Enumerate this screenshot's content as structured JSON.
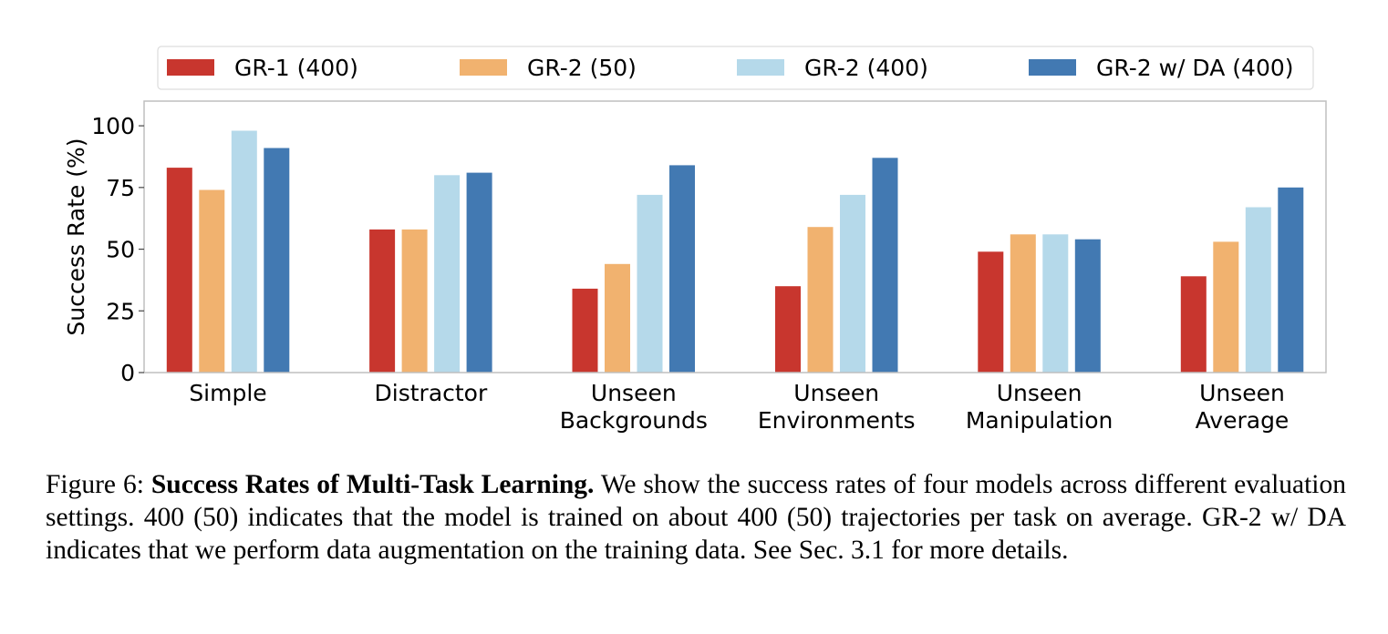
{
  "chart_data": {
    "type": "bar",
    "categories": [
      [
        "Simple"
      ],
      [
        "Distractor"
      ],
      [
        "Unseen",
        "Backgrounds"
      ],
      [
        "Unseen",
        "Environments"
      ],
      [
        "Unseen",
        "Manipulation"
      ],
      [
        "Unseen",
        "Average"
      ]
    ],
    "series": [
      {
        "name": "GR-1 (400)",
        "color": "#c8362e",
        "values": [
          83,
          58,
          34,
          35,
          49,
          39
        ]
      },
      {
        "name": "GR-2 (50)",
        "color": "#f1b26f",
        "values": [
          74,
          58,
          44,
          59,
          56,
          53
        ]
      },
      {
        "name": "GR-2 (400)",
        "color": "#b5d9ea",
        "values": [
          98,
          80,
          72,
          72,
          56,
          67
        ]
      },
      {
        "name": "GR-2 w/ DA (400)",
        "color": "#4279b2",
        "values": [
          91,
          81,
          84,
          87,
          54,
          75
        ]
      }
    ],
    "ylabel": "Success Rate (%)",
    "ylim": [
      0,
      110
    ],
    "yticks": [
      0,
      25,
      50,
      75,
      100
    ],
    "legend_position": "top",
    "grid": false
  },
  "caption": {
    "label": "Figure 6:",
    "title": "Success Rates of Multi-Task Learning.",
    "body": "We show the success rates of four models across different evaluation settings. 400 (50) indicates that the model is trained on about 400 (50) trajectories per task on average. GR-2 w/ DA indicates that we perform data augmentation on the training data. See Sec. 3.1 for more details."
  }
}
